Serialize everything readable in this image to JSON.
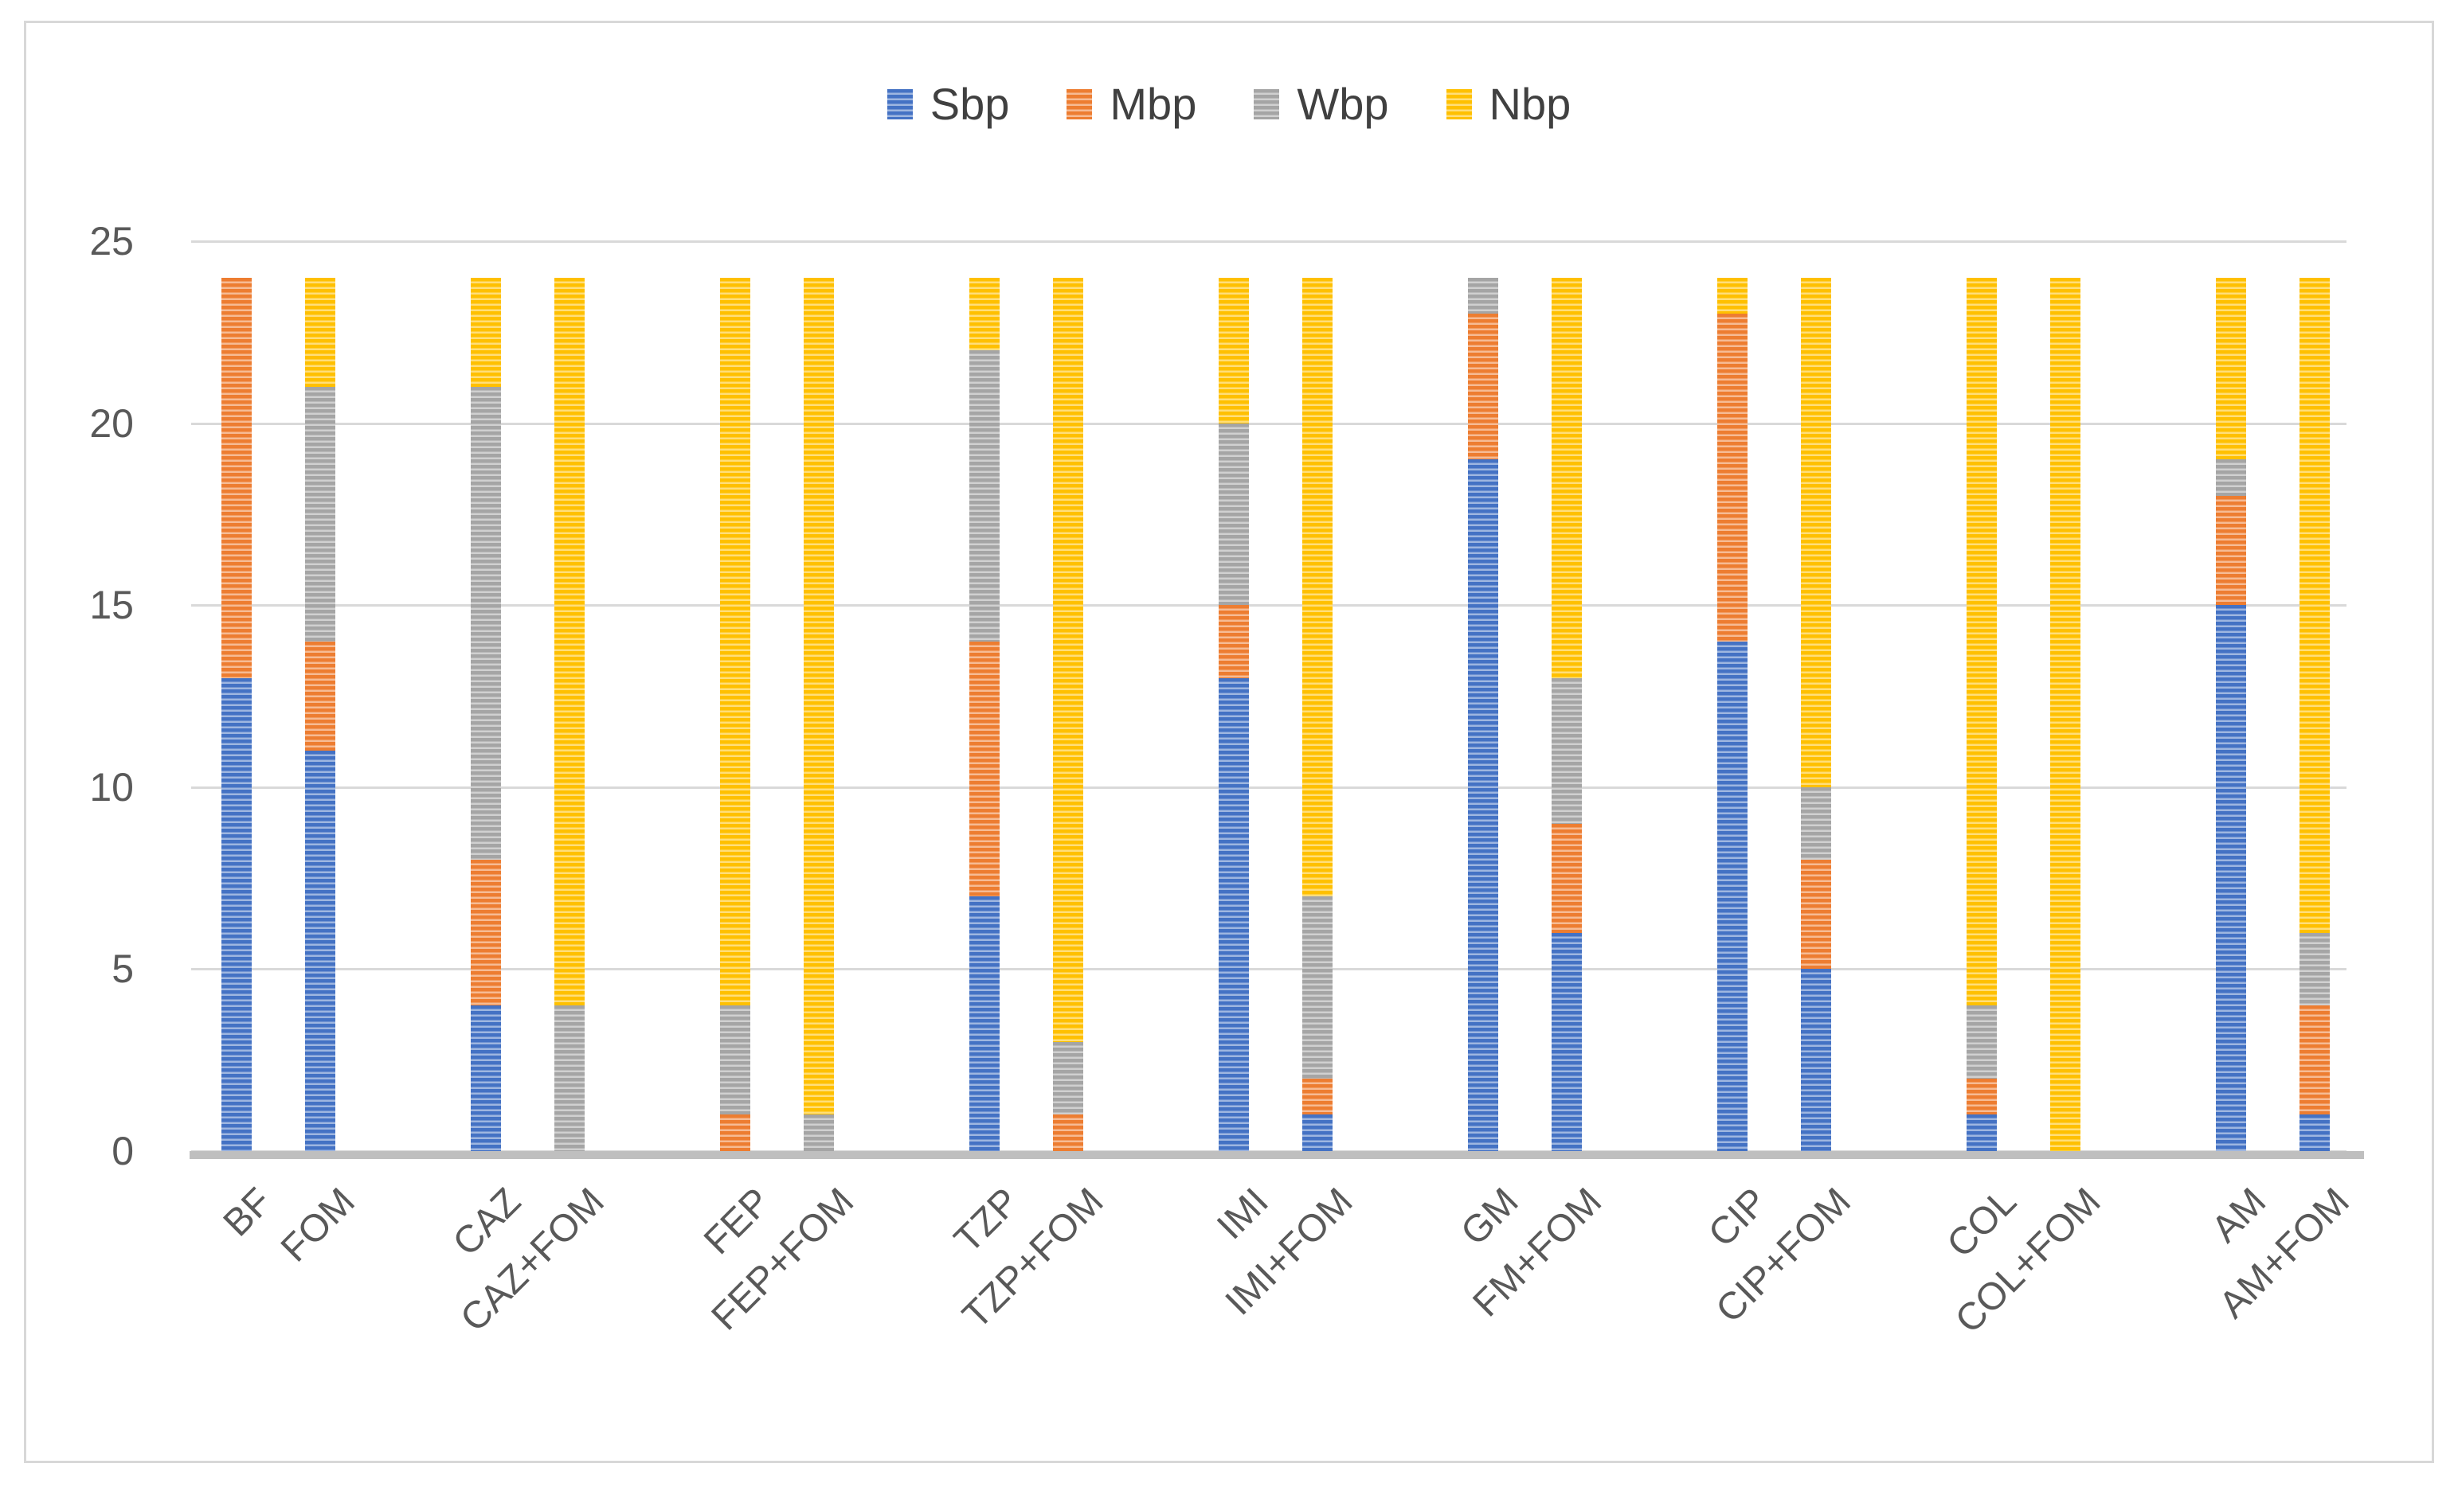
{
  "chart_data": {
    "type": "bar",
    "stacked": true,
    "title": "",
    "xlabel": "",
    "ylabel": "",
    "ylim": [
      0,
      25
    ],
    "yticks": [
      0,
      5,
      10,
      15,
      20,
      25
    ],
    "grid": "horizontal",
    "legend_position": "top-center",
    "fill_pattern": "light-horizontal-stripes",
    "categories": [
      "BF",
      "FOM",
      "CAZ",
      "CAZ+FOM",
      "FEP",
      "FEP+FOM",
      "TZP",
      "TZP+FOM",
      "IMI",
      "IMI+FOM",
      "GM",
      "FM+FOM",
      "CIP",
      "CIP+FOM",
      "COL",
      "COL+FOM",
      "AM",
      "AM+FOM"
    ],
    "series": [
      {
        "name": "Sbp",
        "color": "#4472C4",
        "values": [
          13,
          11,
          4,
          0,
          0,
          0,
          7,
          0,
          13,
          1,
          19,
          6,
          14,
          5,
          1,
          0,
          15,
          1
        ]
      },
      {
        "name": "Mbp",
        "color": "#ED7D31",
        "values": [
          11,
          3,
          4,
          0,
          1,
          0,
          7,
          1,
          2,
          1,
          4,
          3,
          9,
          3,
          1,
          0,
          3,
          3
        ]
      },
      {
        "name": "Wbp",
        "color": "#A5A5A5",
        "values": [
          0,
          7,
          13,
          4,
          3,
          1,
          8,
          2,
          5,
          5,
          1,
          4,
          0,
          2,
          2,
          0,
          1,
          2
        ]
      },
      {
        "name": "Nbp",
        "color": "#FFC000",
        "values": [
          0,
          3,
          3,
          20,
          20,
          23,
          2,
          21,
          4,
          17,
          0,
          11,
          1,
          14,
          20,
          24,
          5,
          18
        ]
      }
    ],
    "bar_total": 24,
    "axis_color": "#BFBFBF",
    "gridline_color": "#D9D9D9",
    "label_color": "#595959",
    "legend_text_color": "#404040"
  }
}
